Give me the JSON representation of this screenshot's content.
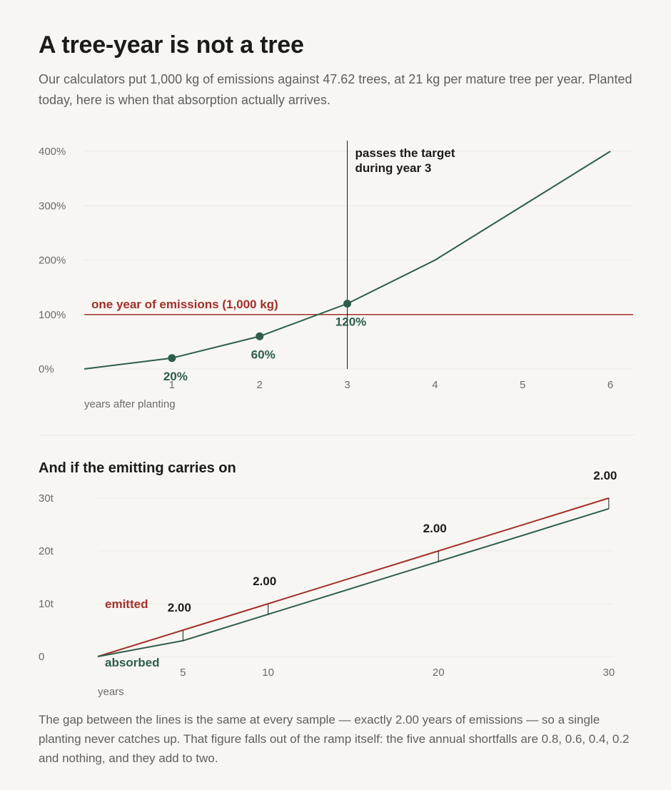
{
  "header": {
    "title": "A tree-year is not a tree",
    "subtitle": "Our calculators put 1,000 kg of emissions against 47.62 trees, at 21 kg per mature tree per year. Planted today, here is when that absorption actually arrives."
  },
  "colors": {
    "absorbed": "#2d5e48",
    "emitted": "#a3302a",
    "grid": "#ebe9e3",
    "axis_text": "#6b6b6b",
    "annotation": "#1b1b1b"
  },
  "section2": {
    "title": "And if the emitting carries on"
  },
  "footer": {
    "text": "The gap between the lines is the same at every sample — exactly 2.00 years of emissions — so a single planting never catches up. That figure falls out of the ramp itself: the five annual shortfalls are 0.8, 0.6, 0.4, 0.2 and nothing, and they add to two."
  },
  "chart_data": [
    {
      "type": "line",
      "xlabel": "years after planting",
      "ylabel": "",
      "xlim": [
        0,
        6.26
      ],
      "ylim": [
        0,
        400
      ],
      "x_ticks": [
        1,
        2,
        3,
        4,
        5,
        6
      ],
      "y_ticks": [
        0,
        100,
        200,
        300,
        400
      ],
      "y_tick_labels": [
        "0%",
        "100%",
        "200%",
        "300%",
        "400%"
      ],
      "grid": true,
      "series": [
        {
          "x": [
            0,
            1,
            2,
            3,
            4,
            5,
            6
          ],
          "values": [
            0,
            20,
            60,
            120,
            200,
            300,
            400
          ],
          "color": "#2d5e48",
          "markers": [
            {
              "x": 1,
              "y": 20,
              "label": "20%"
            },
            {
              "x": 2,
              "y": 60,
              "label": "60%"
            },
            {
              "x": 3,
              "y": 120,
              "label": "120%"
            }
          ]
        }
      ],
      "reference_line": {
        "y": 100,
        "label": "one year of emissions (1,000 kg)",
        "color": "#a3302a"
      },
      "annotation": {
        "x": 3,
        "lines": [
          "passes the target",
          "during year 3"
        ]
      }
    },
    {
      "type": "line",
      "xlabel": "years",
      "ylabel": "",
      "xlim": [
        0,
        30.3
      ],
      "ylim": [
        0,
        30
      ],
      "x_ticks": [
        5,
        10,
        20,
        30
      ],
      "y_ticks": [
        0,
        10,
        20,
        30
      ],
      "y_tick_labels": [
        "0",
        "10t",
        "20t",
        "30t"
      ],
      "grid": true,
      "series": [
        {
          "name": "emitted",
          "x": [
            0,
            5,
            10,
            20,
            30
          ],
          "values": [
            0,
            5,
            10,
            20,
            30
          ],
          "color": "#a3302a"
        },
        {
          "name": "absorbed",
          "x": [
            0,
            5,
            10,
            20,
            30
          ],
          "values": [
            0,
            3,
            8,
            18,
            28
          ],
          "color": "#2d5e48"
        }
      ],
      "gaps": [
        {
          "x": 5,
          "top": 5,
          "bottom": 3,
          "label": "2.00"
        },
        {
          "x": 10,
          "top": 10,
          "bottom": 8,
          "label": "2.00"
        },
        {
          "x": 20,
          "top": 20,
          "bottom": 18,
          "label": "2.00"
        },
        {
          "x": 30,
          "top": 30,
          "bottom": 28,
          "label": "2.00"
        }
      ]
    }
  ]
}
